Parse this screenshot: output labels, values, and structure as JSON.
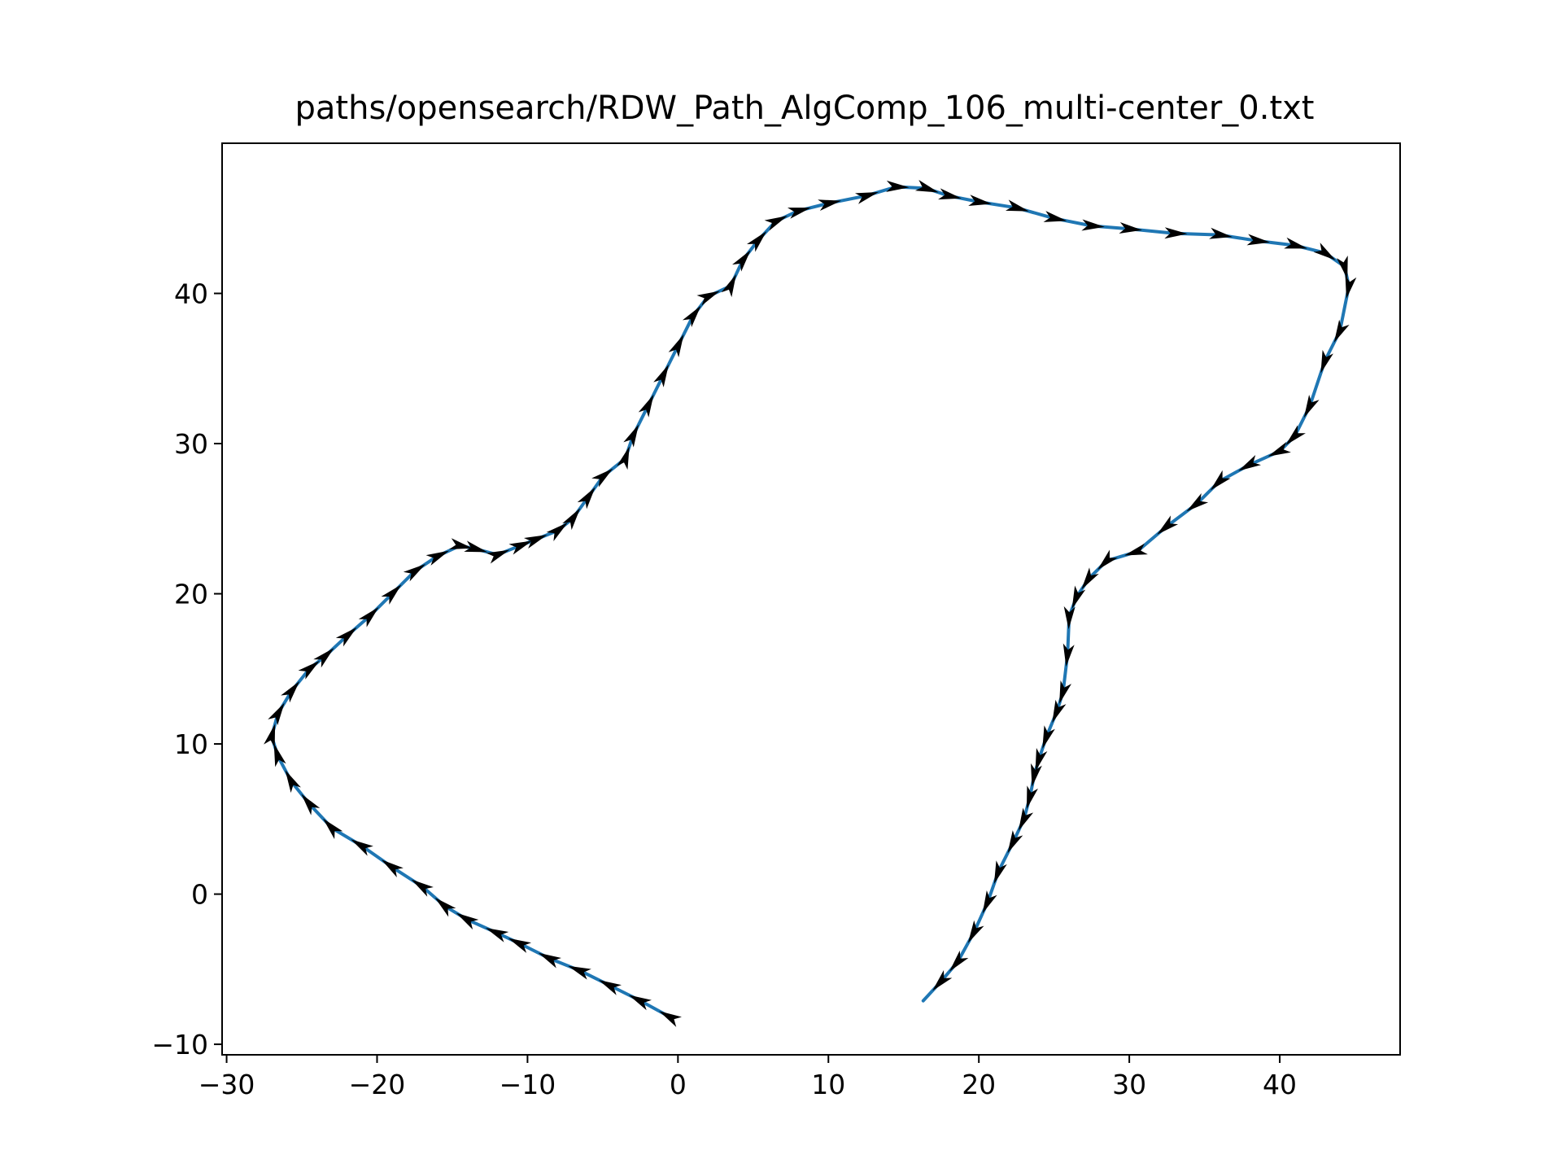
{
  "chart_data": {
    "type": "line",
    "title": "paths/opensearch/RDW_Path_AlgComp_106_multi-center_0.txt",
    "xlabel": "",
    "ylabel": "",
    "xlim": [
      -30.3,
      48
    ],
    "ylim": [
      -10.7,
      50
    ],
    "xticks": [
      -30,
      -20,
      -10,
      0,
      10,
      20,
      30,
      40
    ],
    "yticks": [
      -10,
      0,
      10,
      20,
      30,
      40
    ],
    "xtick_labels": [
      "−30",
      "−20",
      "−10",
      "0",
      "10",
      "20",
      "30",
      "40"
    ],
    "ytick_labels": [
      "−10",
      "0",
      "10",
      "20",
      "30",
      "40"
    ],
    "grid": false,
    "line_color": "#1f77b4",
    "arrow_color": "#000000",
    "series": [
      {
        "x": [
          -0.5,
          -2.5,
          -4.5,
          -6.5,
          -8.5,
          -10.5,
          -12,
          -14,
          -15.5,
          -17,
          -19,
          -21,
          -23,
          -24.5,
          -25.7,
          -26.6,
          -27,
          -26.6,
          -25.7,
          -24.5,
          -23.5,
          -22,
          -20.5,
          -19,
          -17.5,
          -16,
          -14.5,
          -13.5,
          -12,
          -10.5,
          -9.5,
          -8,
          -7,
          -6,
          -5,
          -3.5,
          -3,
          -2,
          -1,
          0,
          1,
          2,
          3.5,
          4.3,
          5.3,
          6.5,
          8,
          10,
          12.5,
          14.5,
          16.5,
          18,
          20,
          22.5,
          25,
          27.5,
          30,
          33,
          36,
          38.5,
          41,
          43,
          44.3,
          44.6,
          44,
          43,
          42,
          41,
          40,
          38,
          36,
          34.5,
          32.5,
          30.5,
          28.5,
          27.3,
          26.5,
          26,
          25.9,
          25.6,
          25.2,
          24.5,
          24,
          23.7,
          23.4,
          23,
          22.3,
          21.3,
          20.6,
          19.7,
          18.6,
          17.5,
          16.3
        ],
        "y": [
          -8.2,
          -7.1,
          -6.1,
          -5.1,
          -4.3,
          -3.3,
          -2.6,
          -1.7,
          -0.8,
          0.5,
          1.8,
          3.2,
          4.4,
          6,
          7.5,
          9.2,
          10.5,
          12,
          13.5,
          15,
          15.8,
          17.2,
          18.5,
          20,
          21.5,
          22.5,
          23.2,
          23,
          22.6,
          23.2,
          23.6,
          24.2,
          25,
          26.4,
          27.8,
          29,
          30.5,
          32.5,
          34.5,
          36.5,
          38.5,
          39.8,
          40.5,
          42.2,
          43.5,
          44.8,
          45.5,
          46,
          46.5,
          47.1,
          47,
          46.5,
          46.1,
          45.7,
          45,
          44.5,
          44.3,
          44,
          43.9,
          43.5,
          43.2,
          42.7,
          41.8,
          40.5,
          37.5,
          35.5,
          32.5,
          30.5,
          29.5,
          28.6,
          27.5,
          26,
          24.5,
          22.8,
          22.2,
          21,
          19.8,
          18.5,
          16,
          13.5,
          12.2,
          10.5,
          9,
          8,
          6.5,
          5,
          3.5,
          1.5,
          -0.5,
          -2.5,
          -4.5,
          -5.8,
          -7.1
        ]
      }
    ]
  }
}
